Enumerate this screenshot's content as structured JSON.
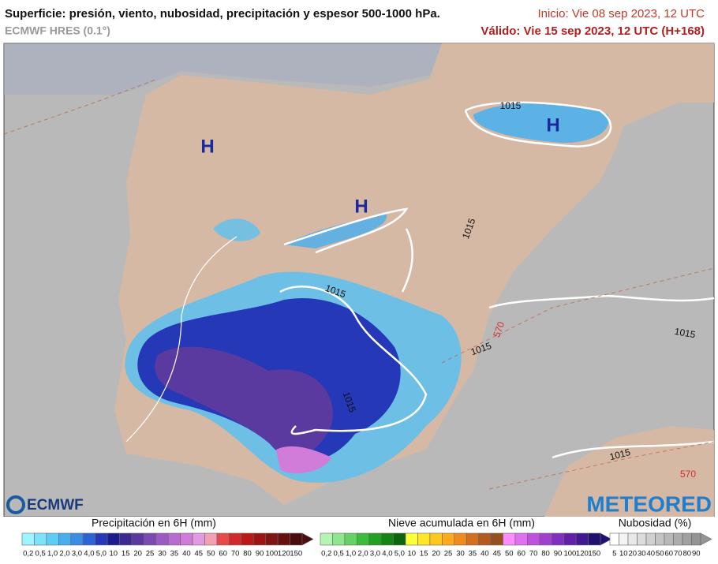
{
  "header": {
    "title": "Superficie: presión, viento, nubosidad, precipitación y espesor 500-1000 hPa.",
    "model": "ECMWF HRES (0.1°)",
    "init": "Inicio: Vie 08 sep 2023, 12 UTC",
    "valid": "Válido: Vie 15 sep 2023, 12 UTC (H+168)"
  },
  "map": {
    "pressure_centers": [
      "H",
      "H",
      "H"
    ],
    "isobar_labels": [
      "1015",
      "1015",
      "1015",
      "1015",
      "1015",
      "1015",
      "1015"
    ],
    "thickness_labels": [
      "570",
      "570"
    ]
  },
  "logos": {
    "left": "ECMWF",
    "right": "METEORED"
  },
  "legends": [
    {
      "title": "Precipitación en 6H (mm)",
      "labels": [
        "0,2",
        "0,5",
        "1,0",
        "2,0",
        "3,0",
        "4,0",
        "5,0",
        "10",
        "15",
        "20",
        "25",
        "30",
        "35",
        "40",
        "45",
        "50",
        "60",
        "70",
        "80",
        "90",
        "100",
        "120",
        "150"
      ],
      "colors": [
        "#9ef5ff",
        "#7de3fa",
        "#5ccdf5",
        "#47aff0",
        "#3a8ee6",
        "#2e63d6",
        "#2438b8",
        "#1c1d8c",
        "#3c2a8e",
        "#5a3a9e",
        "#7a4cb2",
        "#9a5cc2",
        "#b86cd0",
        "#d07cd8",
        "#e49ae0",
        "#f2a0b4",
        "#e84a4a",
        "#d02a2a",
        "#b81a1a",
        "#9c1414",
        "#801414",
        "#661010",
        "#4a0c0c"
      ]
    },
    {
      "title": "Nieve acumulada en 6H (mm)",
      "labels": [
        "0,2",
        "0,5",
        "1,0",
        "2,0",
        "3,0",
        "4,0",
        "5,0",
        "10",
        "15",
        "20",
        "25",
        "30",
        "35",
        "40",
        "45",
        "50",
        "60",
        "70",
        "80",
        "90",
        "100",
        "120",
        "150"
      ],
      "colors": [
        "#b4f5b4",
        "#8ee68e",
        "#64d264",
        "#3cbc3c",
        "#22a022",
        "#148414",
        "#0c640c",
        "#ffff3c",
        "#ffe628",
        "#ffc81e",
        "#ffaa1e",
        "#f08c1e",
        "#d2701e",
        "#b45a1e",
        "#965020",
        "#ff8cff",
        "#e070f0",
        "#c050e0",
        "#a040d0",
        "#8030c0",
        "#6020a8",
        "#401890",
        "#201070"
      ]
    },
    {
      "title": "Nubosidad (%)",
      "labels": [
        "5",
        "10",
        "20",
        "30",
        "40",
        "50",
        "60",
        "70",
        "80",
        "90"
      ],
      "colors": [
        "#ffffff",
        "#f4f4f4",
        "#e8e8e8",
        "#dcdcdc",
        "#d0d0d0",
        "#c4c4c4",
        "#b8b8b8",
        "#acacac",
        "#a0a0a0",
        "#949494"
      ]
    }
  ]
}
